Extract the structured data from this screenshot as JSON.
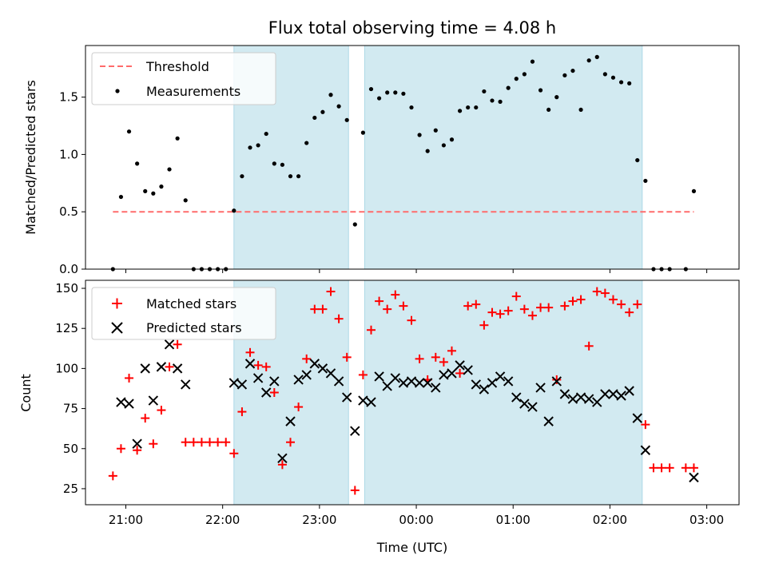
{
  "chart_data": [
    {
      "type": "scatter",
      "title": "Flux total observing time = 4.08 h",
      "xlabel": "",
      "ylabel": "Matched/Predicted stars",
      "x_axis": "time UTC",
      "ylim": [
        0,
        1.95
      ],
      "yticks": [
        "0.0",
        "0.5",
        "1.0",
        "1.5"
      ],
      "shaded_intervals": [
        [
          "22:07",
          "23:18"
        ],
        [
          "23:28",
          "02:20"
        ]
      ],
      "shade_color": "#add8e6",
      "legend_position": "top-left",
      "threshold": {
        "name": "Threshold",
        "value": 0.5,
        "x_range": [
          "20:52",
          "02:52"
        ],
        "color": "#ff6b6b"
      },
      "series": [
        {
          "name": "Measurements",
          "color": "#000000",
          "x": [
            "20:52",
            "20:57",
            "21:02",
            "21:07",
            "21:12",
            "21:17",
            "21:22",
            "21:27",
            "21:32",
            "21:37",
            "21:42",
            "21:47",
            "21:52",
            "21:57",
            "22:02",
            "22:07",
            "22:12",
            "22:17",
            "22:22",
            "22:27",
            "22:32",
            "22:37",
            "22:42",
            "22:47",
            "22:52",
            "22:57",
            "23:02",
            "23:07",
            "23:12",
            "23:17",
            "23:22",
            "23:27",
            "23:32",
            "23:37",
            "23:42",
            "23:47",
            "23:52",
            "23:57",
            "00:02",
            "00:07",
            "00:12",
            "00:17",
            "00:22",
            "00:27",
            "00:32",
            "00:37",
            "00:42",
            "00:47",
            "00:52",
            "00:57",
            "01:02",
            "01:07",
            "01:12",
            "01:17",
            "01:22",
            "01:27",
            "01:32",
            "01:37",
            "01:42",
            "01:47",
            "01:52",
            "01:57",
            "02:02",
            "02:07",
            "02:12",
            "02:17",
            "02:22",
            "02:27",
            "02:32",
            "02:37",
            "02:47",
            "02:52"
          ],
          "y": [
            0.0,
            0.63,
            1.2,
            0.92,
            0.68,
            0.66,
            0.72,
            0.87,
            1.14,
            0.6,
            0.0,
            0.0,
            0.0,
            0.0,
            0.0,
            0.51,
            0.81,
            1.06,
            1.08,
            1.18,
            0.92,
            0.91,
            0.81,
            0.81,
            1.1,
            1.32,
            1.37,
            1.52,
            1.42,
            1.3,
            0.39,
            1.19,
            1.57,
            1.49,
            1.54,
            1.54,
            1.53,
            1.41,
            1.17,
            1.03,
            1.21,
            1.08,
            1.13,
            1.38,
            1.41,
            1.41,
            1.55,
            1.47,
            1.46,
            1.58,
            1.66,
            1.7,
            1.81,
            1.56,
            1.39,
            1.5,
            1.69,
            1.73,
            1.39,
            1.82,
            1.85,
            1.7,
            1.67,
            1.63,
            1.62,
            0.95,
            0.77,
            0.0,
            0.0,
            0.0,
            0.0,
            0.68
          ]
        }
      ]
    },
    {
      "type": "scatter",
      "title": "",
      "xlabel": "Time (UTC)",
      "ylabel": "Count",
      "ylim": [
        15,
        155
      ],
      "yticks": [
        "25",
        "50",
        "75",
        "100",
        "125",
        "150"
      ],
      "xticks": [
        "21:00",
        "22:00",
        "23:00",
        "00:00",
        "01:00",
        "02:00",
        "03:00"
      ],
      "legend_position": "top-left",
      "series": [
        {
          "name": "Matched stars",
          "marker": "plus",
          "color": "#ff0000",
          "x": [
            "20:52",
            "20:57",
            "21:02",
            "21:07",
            "21:12",
            "21:17",
            "21:22",
            "21:27",
            "21:32",
            "21:37",
            "21:42",
            "21:47",
            "21:52",
            "21:57",
            "22:02",
            "22:07",
            "22:12",
            "22:17",
            "22:22",
            "22:27",
            "22:32",
            "22:37",
            "22:42",
            "22:47",
            "22:52",
            "22:57",
            "23:02",
            "23:07",
            "23:12",
            "23:17",
            "23:22",
            "23:27",
            "23:32",
            "23:37",
            "23:42",
            "23:47",
            "23:52",
            "23:57",
            "00:02",
            "00:07",
            "00:12",
            "00:17",
            "00:22",
            "00:27",
            "00:32",
            "00:37",
            "00:42",
            "00:47",
            "00:52",
            "00:57",
            "01:02",
            "01:07",
            "01:12",
            "01:17",
            "01:22",
            "01:27",
            "01:32",
            "01:37",
            "01:42",
            "01:47",
            "01:52",
            "01:57",
            "02:02",
            "02:07",
            "02:12",
            "02:17",
            "02:22",
            "02:27",
            "02:32",
            "02:37",
            "02:47",
            "02:52"
          ],
          "y": [
            33,
            50,
            94,
            49,
            69,
            53,
            74,
            101,
            115,
            54,
            54,
            54,
            54,
            54,
            54,
            47,
            73,
            110,
            102,
            101,
            85,
            40,
            54,
            76,
            106,
            137,
            137,
            148,
            131,
            107,
            24,
            96,
            124,
            142,
            137,
            146,
            139,
            130,
            106,
            93,
            107,
            104,
            111,
            97,
            139,
            140,
            127,
            135,
            134,
            136,
            145,
            137,
            133,
            138,
            138,
            93,
            139,
            142,
            143,
            114,
            148,
            147,
            143,
            140,
            135,
            140,
            65,
            38,
            38,
            38,
            38,
            38
          ]
        },
        {
          "name": "Predicted stars",
          "marker": "x",
          "color": "#000000",
          "x": [
            "20:57",
            "21:02",
            "21:07",
            "21:12",
            "21:17",
            "21:22",
            "21:27",
            "21:32",
            "21:37",
            "22:07",
            "22:12",
            "22:17",
            "22:22",
            "22:27",
            "22:32",
            "22:37",
            "22:42",
            "22:47",
            "22:52",
            "22:57",
            "23:02",
            "23:07",
            "23:12",
            "23:17",
            "23:22",
            "23:27",
            "23:32",
            "23:37",
            "23:42",
            "23:47",
            "23:52",
            "23:57",
            "00:02",
            "00:07",
            "00:12",
            "00:17",
            "00:22",
            "00:27",
            "00:32",
            "00:37",
            "00:42",
            "00:47",
            "00:52",
            "00:57",
            "01:02",
            "01:07",
            "01:12",
            "01:17",
            "01:22",
            "01:27",
            "01:32",
            "01:37",
            "01:42",
            "01:47",
            "01:52",
            "01:57",
            "02:02",
            "02:07",
            "02:12",
            "02:17",
            "02:22",
            "02:52"
          ],
          "y": [
            79,
            78,
            53,
            100,
            80,
            101,
            115,
            100,
            90,
            91,
            90,
            103,
            94,
            85,
            92,
            44,
            67,
            93,
            96,
            103,
            100,
            97,
            92,
            82,
            61,
            80,
            79,
            95,
            89,
            94,
            91,
            92,
            91,
            91,
            88,
            96,
            97,
            102,
            99,
            90,
            87,
            91,
            95,
            92,
            82,
            78,
            76,
            88,
            67,
            92,
            84,
            81,
            82,
            81,
            79,
            84,
            84,
            83,
            86,
            69,
            49,
            32
          ]
        }
      ]
    }
  ]
}
